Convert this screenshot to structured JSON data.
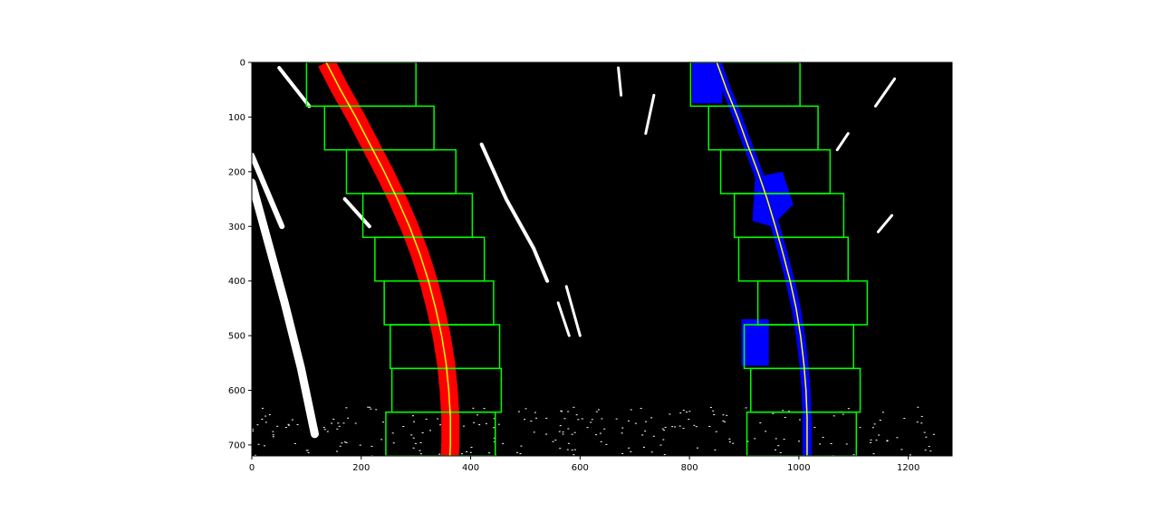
{
  "chart_data": {
    "type": "scatter",
    "title": "",
    "xlabel": "",
    "ylabel": "",
    "xlim": [
      0,
      1280
    ],
    "ylim": [
      720,
      0
    ],
    "y_inverted": true,
    "grid": false,
    "background_color": "#000000",
    "x_ticks": [
      0,
      200,
      400,
      600,
      800,
      1000,
      1200
    ],
    "y_ticks": [
      0,
      100,
      200,
      300,
      400,
      500,
      600,
      700
    ],
    "colors": {
      "left_lane_pixels": "#ff0000",
      "right_lane_pixels": "#0000ff",
      "search_windows": "#00ff00",
      "fit_lines": "#ffff00",
      "other_pixels": "#ffffff"
    },
    "window_height": 80,
    "left_windows": [
      {
        "x": [
          100,
          300
        ],
        "y": [
          0,
          80
        ]
      },
      {
        "x": [
          133,
          333
        ],
        "y": [
          80,
          160
        ]
      },
      {
        "x": [
          173,
          373
        ],
        "y": [
          160,
          240
        ]
      },
      {
        "x": [
          203,
          403
        ],
        "y": [
          240,
          320
        ]
      },
      {
        "x": [
          225,
          425
        ],
        "y": [
          320,
          400
        ]
      },
      {
        "x": [
          242,
          442
        ],
        "y": [
          400,
          480
        ]
      },
      {
        "x": [
          253,
          453
        ],
        "y": [
          480,
          560
        ]
      },
      {
        "x": [
          256,
          456
        ],
        "y": [
          560,
          640
        ]
      },
      {
        "x": [
          245,
          445
        ],
        "y": [
          640,
          720
        ]
      }
    ],
    "right_windows": [
      {
        "x": [
          802,
          1002
        ],
        "y": [
          0,
          80
        ]
      },
      {
        "x": [
          835,
          1035
        ],
        "y": [
          80,
          160
        ]
      },
      {
        "x": [
          857,
          1057
        ],
        "y": [
          160,
          240
        ]
      },
      {
        "x": [
          882,
          1082
        ],
        "y": [
          240,
          320
        ]
      },
      {
        "x": [
          890,
          1090
        ],
        "y": [
          320,
          400
        ]
      },
      {
        "x": [
          925,
          1125
        ],
        "y": [
          400,
          480
        ]
      },
      {
        "x": [
          900,
          1100
        ],
        "y": [
          480,
          560
        ]
      },
      {
        "x": [
          912,
          1112
        ],
        "y": [
          560,
          640
        ]
      },
      {
        "x": [
          905,
          1105
        ],
        "y": [
          640,
          720
        ]
      }
    ],
    "series": [
      {
        "points": [
          {
            "x": 136,
            "y": 0
          },
          {
            "x": 162,
            "y": 50
          },
          {
            "x": 190,
            "y": 100
          },
          {
            "x": 216,
            "y": 150
          },
          {
            "x": 242,
            "y": 200
          },
          {
            "x": 266,
            "y": 250
          },
          {
            "x": 288,
            "y": 300
          },
          {
            "x": 307,
            "y": 350
          },
          {
            "x": 323,
            "y": 400
          },
          {
            "x": 336,
            "y": 450
          },
          {
            "x": 347,
            "y": 500
          },
          {
            "x": 355,
            "y": 550
          },
          {
            "x": 360,
            "y": 600
          },
          {
            "x": 363,
            "y": 650
          },
          {
            "x": 363,
            "y": 700
          },
          {
            "x": 362,
            "y": 720
          }
        ],
        "color": "#ffff00"
      },
      {
        "points": [
          {
            "x": 850,
            "y": 0
          },
          {
            "x": 868,
            "y": 50
          },
          {
            "x": 888,
            "y": 100
          },
          {
            "x": 906,
            "y": 150
          },
          {
            "x": 925,
            "y": 200
          },
          {
            "x": 942,
            "y": 250
          },
          {
            "x": 957,
            "y": 300
          },
          {
            "x": 971,
            "y": 350
          },
          {
            "x": 984,
            "y": 400
          },
          {
            "x": 995,
            "y": 450
          },
          {
            "x": 1003,
            "y": 500
          },
          {
            "x": 1009,
            "y": 550
          },
          {
            "x": 1013,
            "y": 600
          },
          {
            "x": 1015,
            "y": 650
          },
          {
            "x": 1015,
            "y": 700
          },
          {
            "x": 1015,
            "y": 720
          }
        ],
        "color": "#ffff00"
      }
    ]
  }
}
